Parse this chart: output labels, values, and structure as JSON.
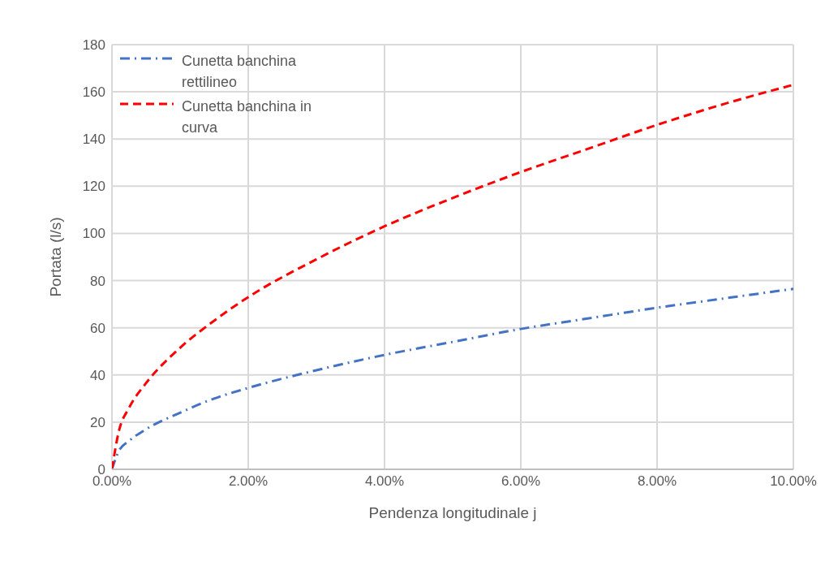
{
  "chart_data": {
    "type": "line",
    "xlabel": "Pendenza longitudinale j",
    "ylabel": "Portata (l/s)",
    "xlim": [
      0,
      10
    ],
    "xticks": [
      {
        "value": 0,
        "label": "0.00%"
      },
      {
        "value": 2,
        "label": "2.00%"
      },
      {
        "value": 4,
        "label": "4.00%"
      },
      {
        "value": 6,
        "label": "6.00%"
      },
      {
        "value": 8,
        "label": "8.00%"
      },
      {
        "value": 10,
        "label": "10.00%"
      }
    ],
    "ylim": [
      0,
      180
    ],
    "yticks": [
      0,
      20,
      40,
      60,
      80,
      100,
      120,
      140,
      160,
      180
    ],
    "grid": true,
    "legend": "top left",
    "marker": "none",
    "series": [
      {
        "name": "Cunetta banchina rettilineo",
        "color": "#4472c4",
        "line_style": "dashdot",
        "x": [
          0,
          0.1,
          0.25,
          0.5,
          1,
          1.5,
          2,
          3,
          4,
          5,
          6,
          7,
          8,
          9,
          10
        ],
        "values": [
          0,
          7.7,
          12,
          17,
          24,
          30,
          34.5,
          42,
          48.5,
          54,
          59.5,
          64,
          68.5,
          72.5,
          76.5
        ]
      },
      {
        "name": "Cunetta banchina in curva",
        "color": "#ff0000",
        "line_style": "dashed",
        "x": [
          0,
          0.1,
          0.25,
          0.5,
          1,
          1.5,
          2,
          3,
          4,
          5,
          6,
          7,
          8,
          9,
          10
        ],
        "values": [
          0,
          16,
          26,
          36.5,
          51.5,
          63,
          73,
          89,
          103,
          115,
          126,
          136,
          146,
          155,
          163
        ]
      }
    ]
  }
}
